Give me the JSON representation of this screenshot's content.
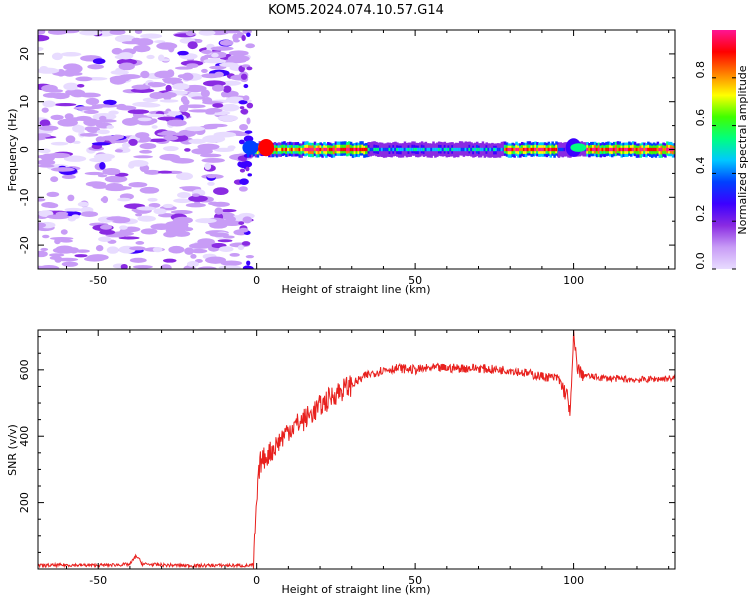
{
  "chart_data": [
    {
      "type": "heatmap",
      "title": "KOM5.2024.074.10.57.G14",
      "xlabel": "Height of straight line (km)",
      "ylabel": "Frequency (Hz)",
      "xlim": [
        -69,
        132
      ],
      "ylim": [
        -25,
        25
      ],
      "xticks": [
        -50,
        0,
        50,
        100
      ],
      "yticks": [
        -20,
        -10,
        0,
        10,
        20
      ],
      "colorbar": {
        "label": "Normalized spectral amplitude",
        "range": [
          0,
          1
        ],
        "ticks": [
          "0.0",
          "0.2",
          "0.4",
          "0.6",
          "0.8"
        ],
        "colors": [
          "#e8dcff",
          "#c89cf6",
          "#8a2be2",
          "#3c00ff",
          "#0040ff",
          "#00c8ff",
          "#00ff80",
          "#40ff00",
          "#ffff00",
          "#ff8000",
          "#ff0000",
          "#ff1493"
        ]
      },
      "signal": {
        "onset_km": -3,
        "frequency_hz": 0,
        "segments": [
          {
            "x": [
              -3,
              15
            ],
            "level": 0.85
          },
          {
            "x": [
              15,
              35
            ],
            "level": 0.95
          },
          {
            "x": [
              35,
              78
            ],
            "level": 0.45
          },
          {
            "x": [
              78,
              95
            ],
            "level": 0.9
          },
          {
            "x": [
              95,
              104
            ],
            "level": 0.3
          },
          {
            "x": [
              104,
              132
            ],
            "level": 0.95
          }
        ]
      },
      "noise_region_km": [
        -69,
        -3
      ],
      "grid": false
    },
    {
      "type": "line",
      "xlabel": "Height of straight line (km)",
      "ylabel": "SNR (v/v)",
      "xlim": [
        -69,
        132
      ],
      "ylim": [
        0,
        720
      ],
      "xticks": [
        -50,
        0,
        50,
        100
      ],
      "yticks": [
        200,
        400,
        600
      ],
      "color": "#e8211e",
      "series": [
        {
          "x": [
            -69,
            -60,
            -50,
            -40,
            -38,
            -36,
            -30,
            -20,
            -10,
            -3,
            -1,
            0,
            1,
            3,
            5,
            10,
            15,
            20,
            25,
            30,
            35,
            40,
            45,
            50,
            55,
            60,
            65,
            70,
            75,
            80,
            85,
            90,
            95,
            98,
            99,
            100,
            101,
            102,
            105,
            110,
            120,
            132
          ],
          "y": [
            10,
            12,
            11,
            14,
            40,
            15,
            12,
            10,
            11,
            10,
            12,
            200,
            320,
            340,
            360,
            420,
            450,
            490,
            530,
            555,
            585,
            600,
            605,
            600,
            605,
            605,
            605,
            605,
            600,
            600,
            590,
            580,
            575,
            520,
            470,
            700,
            620,
            590,
            580,
            575,
            570,
            575
          ]
        }
      ],
      "grid": false
    }
  ]
}
